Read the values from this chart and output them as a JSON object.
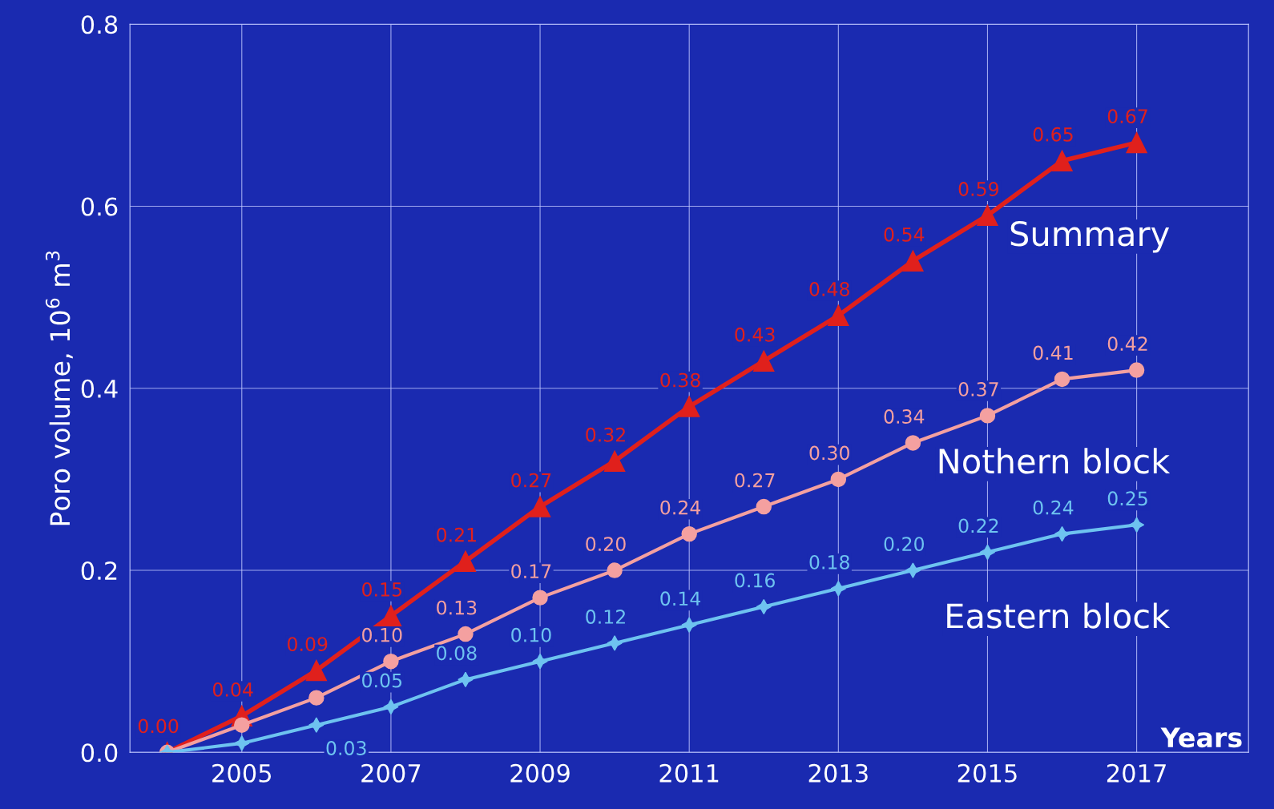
{
  "chart_data": {
    "type": "line",
    "ylabel": "Poro volume, 10$^{6}$ m$^{3}$",
    "xlabel": "Years",
    "x": [
      2004,
      2005,
      2006,
      2007,
      2008,
      2009,
      2010,
      2011,
      2012,
      2013,
      2014,
      2015,
      2016,
      2017
    ],
    "xlim": [
      2003.5,
      2018.5
    ],
    "xticks": [
      2005,
      2007,
      2009,
      2011,
      2013,
      2015,
      2017
    ],
    "ylim": [
      0,
      0.8
    ],
    "yticks": [
      {
        "value": 0,
        "label": "0.0"
      },
      0.2,
      0.4,
      0.6,
      0.8
    ],
    "grid": true,
    "legend": false,
    "series": [
      {
        "name": "Summary",
        "color": "#e0201c",
        "marker": "triangle",
        "values": [
          0.0,
          0.04,
          0.09,
          0.15,
          0.21,
          0.27,
          0.32,
          0.38,
          0.43,
          0.48,
          0.54,
          0.59,
          0.65,
          0.67
        ],
        "value_labels": [
          "0.00",
          "0.04",
          "0.09",
          "0.15",
          "0.21",
          "0.27",
          "0.32",
          "0.38",
          "0.43",
          "0.48",
          "0.54",
          "0.59",
          "0.65",
          "0.67"
        ]
      },
      {
        "name": "Nothern block",
        "color": "#f4a0a0",
        "marker": "circle",
        "values": [
          0.0,
          0.03,
          0.06,
          0.1,
          0.13,
          0.17,
          0.2,
          0.24,
          0.27,
          0.3,
          0.34,
          0.37,
          0.41,
          0.42
        ],
        "value_labels": [
          null,
          null,
          null,
          "0.10",
          "0.13",
          "0.17",
          "0.20",
          "0.24",
          "0.27",
          "0.30",
          "0.34",
          "0.37",
          "0.41",
          "0.42"
        ]
      },
      {
        "name": "Eastern block",
        "color": "#6ec3f0",
        "marker": "star",
        "values": [
          0.0,
          0.01,
          0.03,
          0.05,
          0.08,
          0.1,
          0.12,
          0.14,
          0.16,
          0.18,
          0.2,
          0.22,
          0.24,
          0.25
        ],
        "value_labels": [
          null,
          null,
          "0.03",
          "0.05",
          "0.08",
          "0.10",
          "0.12",
          "0.14",
          "0.16",
          "0.18",
          "0.20",
          "0.22",
          "0.24",
          "0.25"
        ]
      }
    ]
  }
}
